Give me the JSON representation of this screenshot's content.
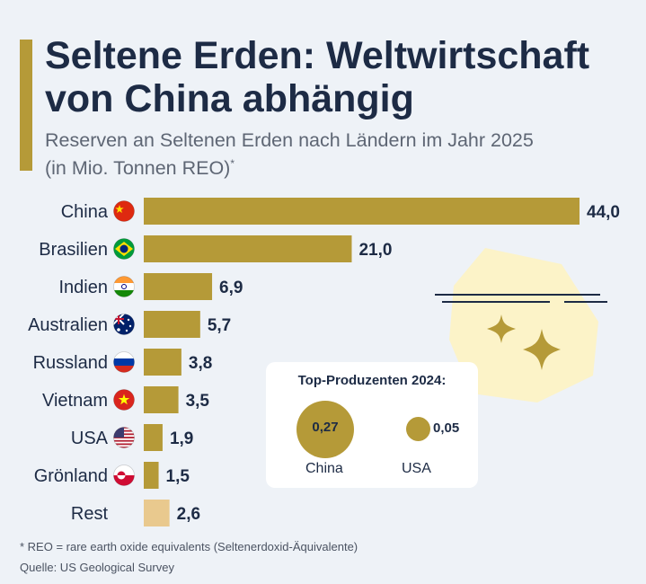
{
  "title": "Seltene Erden: Weltwirtschaft von China abhängig",
  "subtitle": "Reserven an Seltenen Erden nach Ländern im Jahr 2025",
  "subtitle_unit": "(in Mio. Tonnen REO)",
  "subtitle_mark": "*",
  "colors": {
    "accent": "#b59a38",
    "rest_bar": "#e9c98e",
    "text_dark": "#1d2b45",
    "background": "#eef2f7"
  },
  "chart_data": {
    "type": "bar",
    "orientation": "horizontal",
    "categories": [
      "China",
      "Brasilien",
      "Indien",
      "Australien",
      "Russland",
      "Vietnam",
      "USA",
      "Grönland",
      "Rest"
    ],
    "values": [
      44.0,
      21.0,
      6.9,
      5.7,
      3.8,
      3.5,
      1.9,
      1.5,
      2.6
    ],
    "value_labels": [
      "44,0",
      "21,0",
      "6,9",
      "5,7",
      "3,8",
      "3,5",
      "1,9",
      "1,5",
      "2,6"
    ],
    "flags": [
      "china-flag-icon",
      "brazil-flag-icon",
      "india-flag-icon",
      "australia-flag-icon",
      "russia-flag-icon",
      "vietnam-flag-icon",
      "usa-flag-icon",
      "greenland-flag-icon",
      null
    ],
    "highlight": {
      "Rest": "#e9c98e"
    },
    "xlim": [
      0,
      44.0
    ],
    "grid": false,
    "legend": "none"
  },
  "producers": {
    "title": "Top-Produzenten 2024:",
    "items": [
      {
        "label": "China",
        "value": 0.27,
        "value_label": "0,27"
      },
      {
        "label": "USA",
        "value": 0.05,
        "value_label": "0,05"
      }
    ]
  },
  "footnote": "* REO = rare earth oxide equivalents (Seltenerdoxid-Äquivalente)",
  "source": "Quelle: US Geological Survey"
}
